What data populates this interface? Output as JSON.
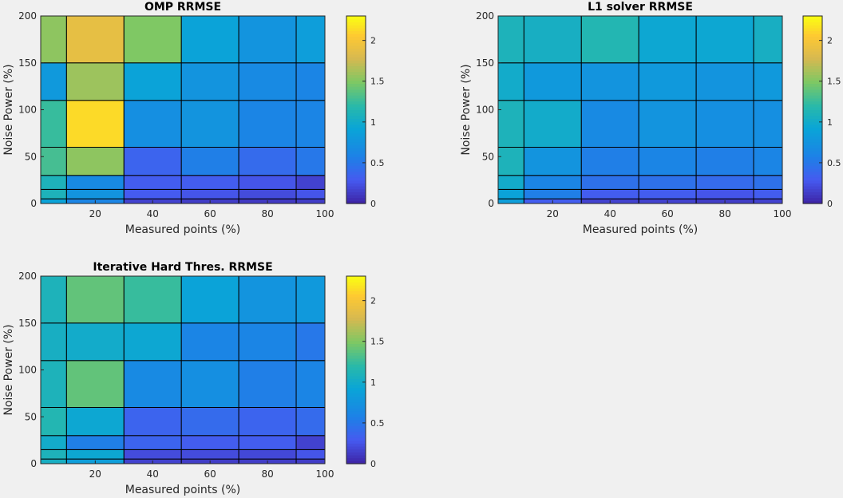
{
  "chart_data": [
    {
      "type": "heatmap",
      "title": "OMP RRMSE",
      "xlabel": "Measured points (%)",
      "ylabel": "Noise Power (%)",
      "x_edges": [
        1,
        10,
        30,
        50,
        70,
        90,
        100
      ],
      "y_edges": [
        0,
        5,
        15,
        30,
        60,
        110,
        150,
        200
      ],
      "xticks": [
        20,
        40,
        60,
        80,
        100
      ],
      "yticks": [
        0,
        50,
        100,
        150,
        200
      ],
      "xlim": [
        1,
        100
      ],
      "ylim": [
        0,
        200
      ],
      "values": [
        [
          0.9,
          0.6,
          0.15,
          0.12,
          0.1,
          0.12
        ],
        [
          1.1,
          0.75,
          0.28,
          0.25,
          0.2,
          0.25
        ],
        [
          1.1,
          0.65,
          0.3,
          0.3,
          0.25,
          0.15
        ],
        [
          1.3,
          1.55,
          0.35,
          0.55,
          0.4,
          0.5
        ],
        [
          1.25,
          2.15,
          0.7,
          0.75,
          0.6,
          0.6
        ],
        [
          0.8,
          1.6,
          0.9,
          0.75,
          0.65,
          0.6
        ],
        [
          1.55,
          1.9,
          1.5,
          0.9,
          0.75,
          0.85
        ]
      ],
      "colorbar": {
        "min": 0,
        "max": 2.3,
        "ticks": [
          0,
          0.5,
          1,
          1.5,
          2
        ],
        "tick_labels": [
          "0",
          "0.5",
          "1",
          "1.5",
          "2"
        ]
      }
    },
    {
      "type": "heatmap",
      "title": "L1 solver RRMSE",
      "xlabel": "Measured points (%)",
      "ylabel": "Noise Power (%)",
      "x_edges": [
        1,
        10,
        30,
        50,
        70,
        90,
        100
      ],
      "y_edges": [
        0,
        5,
        15,
        30,
        60,
        110,
        150,
        200
      ],
      "xticks": [
        20,
        40,
        60,
        80,
        100
      ],
      "yticks": [
        0,
        50,
        100,
        150,
        200
      ],
      "xlim": [
        1,
        100
      ],
      "ylim": [
        0,
        200
      ],
      "values": [
        [
          0.85,
          0.3,
          0.15,
          0.15,
          0.12,
          0.15
        ],
        [
          0.9,
          0.55,
          0.3,
          0.3,
          0.25,
          0.3
        ],
        [
          1.0,
          0.6,
          0.45,
          0.45,
          0.4,
          0.45
        ],
        [
          1.1,
          0.75,
          0.55,
          0.6,
          0.55,
          0.6
        ],
        [
          1.1,
          1.0,
          0.65,
          0.75,
          0.7,
          0.7
        ],
        [
          1.0,
          0.8,
          0.75,
          0.8,
          0.75,
          0.8
        ],
        [
          1.1,
          1.05,
          1.15,
          0.95,
          0.95,
          1.05
        ]
      ],
      "colorbar": {
        "min": 0,
        "max": 2.3,
        "ticks": [
          0,
          0.5,
          1,
          1.5,
          2
        ],
        "tick_labels": [
          "0",
          "0.5",
          "1",
          "1.5",
          "2"
        ]
      }
    },
    {
      "type": "heatmap",
      "title": "Iterative Hard Thres. RRMSE",
      "xlabel": "Measured points (%)",
      "ylabel": "Noise Power (%)",
      "x_edges": [
        1,
        10,
        30,
        50,
        70,
        90,
        100
      ],
      "y_edges": [
        0,
        5,
        15,
        30,
        60,
        110,
        150,
        200
      ],
      "xticks": [
        20,
        40,
        60,
        80,
        100
      ],
      "yticks": [
        0,
        50,
        100,
        150,
        200
      ],
      "xlim": [
        1,
        100
      ],
      "ylim": [
        0,
        200
      ],
      "values": [
        [
          1.05,
          0.85,
          0.15,
          0.12,
          0.12,
          0.12
        ],
        [
          1.1,
          0.95,
          0.2,
          0.2,
          0.18,
          0.25
        ],
        [
          1.0,
          0.55,
          0.35,
          0.3,
          0.3,
          0.15
        ],
        [
          1.15,
          0.95,
          0.35,
          0.4,
          0.35,
          0.4
        ],
        [
          1.1,
          1.4,
          0.65,
          0.7,
          0.55,
          0.6
        ],
        [
          1.05,
          1.0,
          0.95,
          0.6,
          0.6,
          0.5
        ],
        [
          1.1,
          1.4,
          1.25,
          0.9,
          0.75,
          0.8
        ]
      ],
      "colorbar": {
        "min": 0,
        "max": 2.3,
        "ticks": [
          0,
          0.5,
          1,
          1.5,
          2
        ],
        "tick_labels": [
          "0",
          "0.5",
          "1",
          "1.5",
          "2"
        ]
      }
    }
  ]
}
